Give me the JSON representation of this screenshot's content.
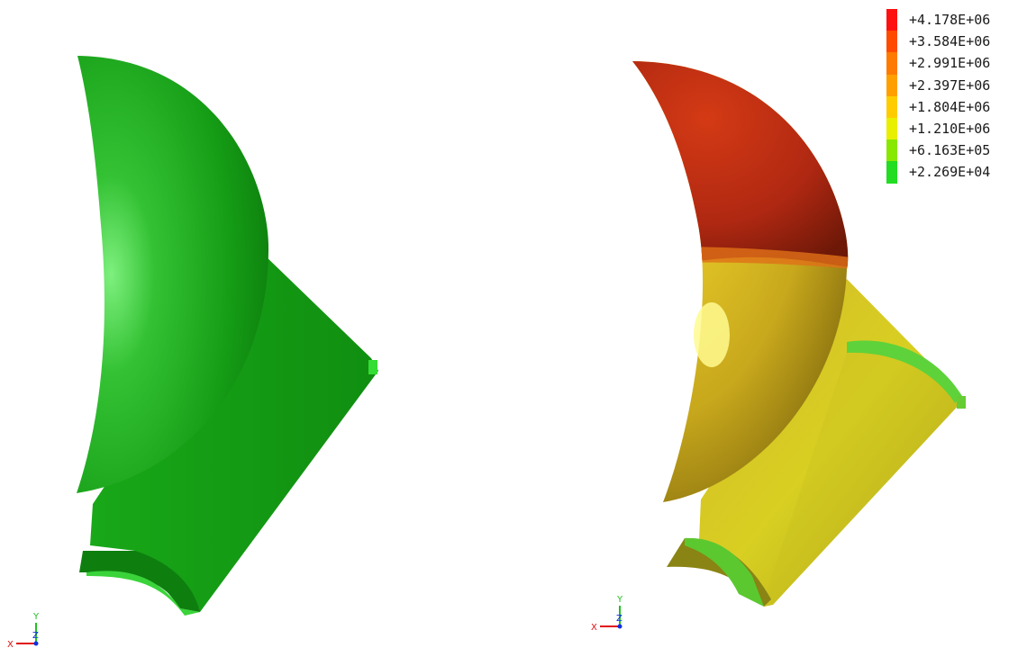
{
  "legend": {
    "entries": [
      {
        "label": "+4.178E+06",
        "color": "#ff1010"
      },
      {
        "label": "+3.584E+06",
        "color": "#ff4a00"
      },
      {
        "label": "+2.991E+06",
        "color": "#ff7a00"
      },
      {
        "label": "+2.397E+06",
        "color": "#ffa000"
      },
      {
        "label": "+1.804E+06",
        "color": "#ffcc00"
      },
      {
        "label": "+1.210E+06",
        "color": "#e8f000"
      },
      {
        "label": "+6.163E+05",
        "color": "#88e800"
      },
      {
        "label": "+2.269E+04",
        "color": "#22dd22"
      }
    ]
  },
  "triads": {
    "left": {
      "x": "X",
      "y": "Y",
      "z": "Z"
    },
    "right": {
      "x": "X",
      "y": "Y",
      "z": "Z"
    }
  },
  "colors": {
    "background": "#ffffff",
    "undeformed_model": "#1fa81f",
    "contour_high": "#c8281a",
    "contour_mid": "#e0d020",
    "contour_low": "#22dd22",
    "axis_x": "#e01010",
    "axis_y": "#20c020",
    "axis_z": "#1030e0"
  }
}
